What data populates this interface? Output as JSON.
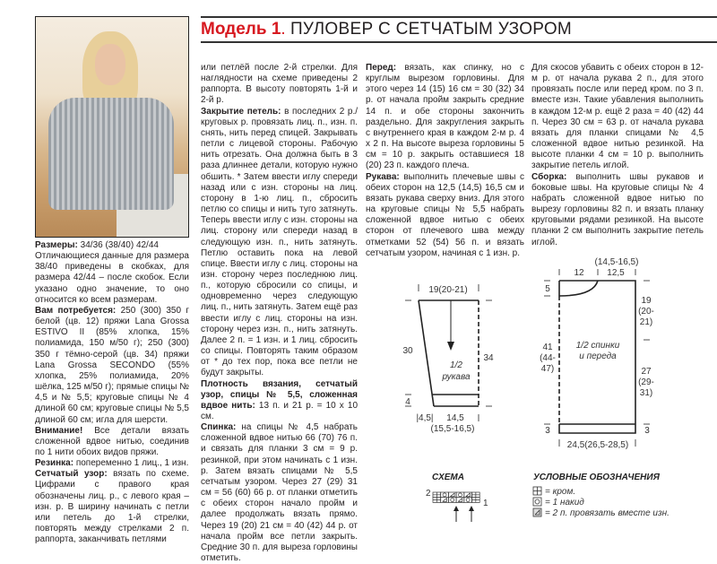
{
  "header": {
    "model": "Модель 1",
    "separator": ".",
    "title": "ПУЛОВЕР С СЕТЧАТЫМ УЗОРОМ"
  },
  "colors": {
    "accent": "#d71920",
    "text": "#231f20"
  },
  "columns": [
    [
      {
        "label": "Размеры:",
        "text": "34/36 (38/40) 42/44"
      },
      {
        "label": "",
        "text": "Отличающиеся данные для размера 38/40 приведены в скобках, для размера 42/44 – после скобок. Если указано одно значение, то оно относится ко всем размерам."
      },
      {
        "label": "Вам потребуется:",
        "text": "250 (300) 350 г белой (цв. 12) пряжи Lana Grossa ESTIVO II (85% хлопка, 15% полиамида, 150 м/50 г); 250 (300) 350 г тёмно-серой (цв. 34) пряжи Lana Grossa SECONDO (55% хлопка, 25% полиамида, 20% шёлка, 125 м/50 г); прямые спицы № 4,5 и № 5,5; круговые спицы № 4 длиной 60 см; круговые спицы № 5,5 длиной 60 см; игла для шерсти."
      },
      {
        "label": "Внимание!",
        "text": "Все детали вязать сложенной вдвое нитью, соединив по 1 нити обоих видов пряжи."
      },
      {
        "label": "Резинка:",
        "text": "попеременно 1 лиц., 1 изн."
      },
      {
        "label": "Сетчатый узор:",
        "text": "вязать по схеме. Цифрами с правого края обозначены лиц. р., с левого края – изн. р. В ширину начинать с петли или петель до 1-й стрелки, повторять между стрелками 2 п. раппорта, заканчивать петлями"
      }
    ],
    [
      {
        "label": "",
        "text": "или петлёй после 2-й стрелки. Для наглядности на схеме приведены 2 раппорта. В высоту повторять 1-й и 2-й р."
      },
      {
        "label": "Закрытие петель:",
        "text": "в последних 2 р./круговых р. провязать лиц. п., изн. п. снять, нить перед спицей. Закрывать петли с лицевой стороны. Рабочую нить отрезать. Она должна быть в 3 раза длиннее детали, которую нужно обшить. * Затем ввести иглу спереди назад или с изн. стороны на лиц. сторону в 1-ю лиц. п., сбросить петлю со спицы и нить туго затянуть. Теперь ввести иглу с изн. стороны на лиц. сторону или спереди назад в следующую изн. п., нить затянуть. Петлю оставить пока на левой спице. Ввести иглу с лиц. стороны на изн. сторону через последнюю лиц. п., которую сбросили со спицы, и одновременно через следующую лиц. п., нить затянуть. Затем ещё раз ввести иглу с лиц. стороны на изн. сторону через изн. п., нить затянуть. Далее 2 п. = 1 изн. и 1 лиц. сбросить со спицы. Повторять таким образом от * до тех пор, пока все петли не будут закрыты."
      },
      {
        "label": "Плотность вязания, сетчатый узор, спицы № 5,5, сложенная вдвое нить:",
        "text": "13 п. и 21 р. = 10 х 10 см."
      },
      {
        "label": "Спинка:",
        "text": "на спицы № 4,5 набрать сложенной вдвое нитью 66 (70) 76 п. и связать для планки 3 см = 9 р. резинкой, при этом начинать с 1 изн. р. Затем вязать спицами № 5,5 сетчатым узором. Через 27 (29) 31 см = 56 (60) 66 р. от планки отметить с обеих сторон начало пройм и далее продолжать вязать прямо. Через 19 (20) 21 см = 40 (42) 44 р. от начала пройм все петли закрыть. Средние 30 п. для выреза горловины отметить."
      }
    ],
    [
      {
        "label": "Перед:",
        "text": "вязать, как спинку, но с круглым вырезом горловины. Для этого через 14 (15) 16 см = 30 (32) 34 р. от начала пройм закрыть средние 14 п. и обе стороны закончить раздельно. Для закругления закрыть с внутреннего края в каждом 2-м р. 4 х 2 п. На высоте выреза горловины 5 см = 10 р. закрыть оставшиеся 18 (20) 23 п. каждого плеча."
      },
      {
        "label": "Рукава:",
        "text": "выполнить плечевые швы с обеих сторон на 12,5 (14,5) 16,5 см и вязать рукава сверху вниз. Для этого на круговые спицы № 5,5 набрать сложенной вдвое нитью с обеих сторон от плечевого шва между отметками 52 (54) 56 п. и вязать сетчатым узором, начиная с 1 изн. р."
      }
    ],
    [
      {
        "label": "",
        "text": "Для скосов убавить с обеих сторон в 12-м р. от начала рукава 2 п., для этого провязать после или перед кром. по 3 п. вместе изн. Такие убавления выполнить в каждом 12-м р. ещё 2 раза = 40 (42) 44 п. Через 30 см = 63 р. от начала рукава вязать для планки спицами № 4,5 сложенной вдвое нитью резинкой. На высоте планки 4 см = 10 р. выполнить закрытие петель иглой."
      },
      {
        "label": "Сборка:",
        "text": "выполнить швы рукавов и боковые швы. На круговые спицы № 4 набрать сложенной вдвое нитью по вырезу горловины 82 п. и вязать планку круговыми рядами резинкой. На высоте планки 2 см выполнить закрытие петель иглой."
      }
    ]
  ],
  "sleeve_diagram": {
    "top_width": "19(20-21)",
    "height_left": "30",
    "height_right": "34",
    "rib_height": "4",
    "label_1": "1/2",
    "label_2": "рукава",
    "offset": "|4,5|",
    "bottom_width_1": "14,5",
    "bottom_width_2": "(15,5-16,5)"
  },
  "body_diagram": {
    "top_alt": "(14,5-16,5)",
    "neck_width": "12",
    "shoulder_width": "12,5",
    "neck_depth": "5",
    "armhole_1": "19",
    "armhole_2": "(20-",
    "armhole_3": "21)",
    "total_1": "41",
    "total_2": "(44-",
    "total_3": "47)",
    "label_1": "1/2 спинки",
    "label_2": "и переда",
    "side_1": "27",
    "side_2": "(29-",
    "side_3": "31)",
    "rib_left": "3",
    "rib_right": "3",
    "bottom_width": "24,5(26,5-28,5)"
  },
  "schema": {
    "title": "СХЕМА",
    "row_top_label": "2",
    "row_bottom_label": "1",
    "rows": [
      [
        "edge",
        "yo",
        "k2tog",
        "yo",
        "k2tog",
        "edge"
      ],
      [
        "edge",
        "k2tog",
        "yo",
        "k2tog",
        "yo",
        "edge"
      ]
    ]
  },
  "legend": {
    "title": "УСЛОВНЫЕ ОБОЗНАЧЕНИЯ",
    "items": [
      {
        "icon": "edge-stitch-icon",
        "text": "= кром."
      },
      {
        "icon": "yarn-over-icon",
        "text": "= 1 накид"
      },
      {
        "icon": "purl-two-together-icon",
        "text": "= 2 п. провязать вместе изн."
      }
    ]
  }
}
